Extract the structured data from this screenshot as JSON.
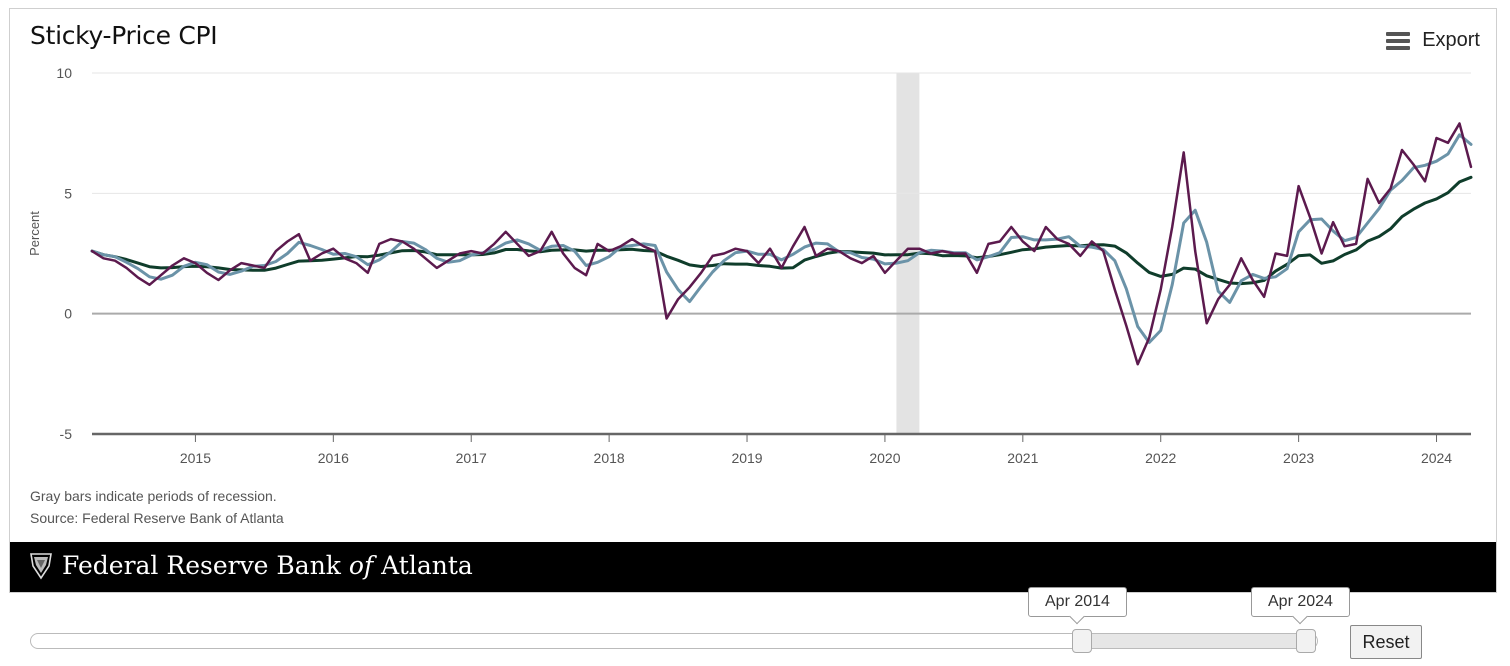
{
  "header": {
    "export_label": "Export",
    "menu_icon": "hamburger-menu-icon"
  },
  "notes": {
    "recession": "Gray bars indicate periods of recession.",
    "source": "Source: Federal Reserve Bank of Atlanta"
  },
  "footer": {
    "name_part1": "Federal Reserve Bank ",
    "name_italic": "of",
    "name_part2": " Atlanta",
    "logo_icon": "eagle-seal-icon"
  },
  "navigator": {
    "start_label": "Apr 2014",
    "end_label": "Apr 2024",
    "reset_label": "Reset"
  },
  "colors": {
    "series1": "#5c1a4e",
    "series2": "#6b93a8",
    "series3": "#0f3d2b",
    "recession": "#e3e3e3",
    "axis": "#666666",
    "zero_line": "#aaaaaa",
    "grid": "#e6e6e6"
  },
  "chart_data": {
    "type": "line",
    "title": "Sticky-Price CPI",
    "ylabel": "Percent",
    "xlabel": "",
    "ylim": [
      -5,
      10
    ],
    "yticks": [
      -5,
      0,
      5,
      10
    ],
    "xlim": [
      "2014-04",
      "2024-04"
    ],
    "xticks": [
      "2015",
      "2016",
      "2017",
      "2018",
      "2019",
      "2020",
      "2021",
      "2022",
      "2023",
      "2024"
    ],
    "recessions": [
      {
        "start": "2020-02",
        "end": "2020-04"
      }
    ],
    "series": [
      {
        "points": [
          [
            "2014-04",
            2.6
          ],
          [
            "2014-05",
            2.3
          ],
          [
            "2014-06",
            2.2
          ],
          [
            "2014-07",
            1.9
          ],
          [
            "2014-08",
            1.5
          ],
          [
            "2014-09",
            1.2
          ],
          [
            "2014-10",
            1.6
          ],
          [
            "2014-11",
            2.0
          ],
          [
            "2014-12",
            2.3
          ],
          [
            "2015-01",
            2.1
          ],
          [
            "2015-02",
            1.7
          ],
          [
            "2015-03",
            1.4
          ],
          [
            "2015-04",
            1.8
          ],
          [
            "2015-05",
            2.1
          ],
          [
            "2015-06",
            2.0
          ],
          [
            "2015-07",
            1.9
          ],
          [
            "2015-08",
            2.6
          ],
          [
            "2015-09",
            3.0
          ],
          [
            "2015-10",
            3.3
          ],
          [
            "2015-11",
            2.2
          ],
          [
            "2015-12",
            2.5
          ],
          [
            "2016-01",
            2.7
          ],
          [
            "2016-02",
            2.3
          ],
          [
            "2016-03",
            2.1
          ],
          [
            "2016-04",
            1.7
          ],
          [
            "2016-05",
            2.9
          ],
          [
            "2016-06",
            3.1
          ],
          [
            "2016-07",
            3.0
          ],
          [
            "2016-08",
            2.7
          ],
          [
            "2016-09",
            2.3
          ],
          [
            "2016-10",
            1.9
          ],
          [
            "2016-11",
            2.2
          ],
          [
            "2016-12",
            2.5
          ],
          [
            "2017-01",
            2.6
          ],
          [
            "2017-02",
            2.5
          ],
          [
            "2017-03",
            2.9
          ],
          [
            "2017-04",
            3.4
          ],
          [
            "2017-05",
            2.9
          ],
          [
            "2017-06",
            2.4
          ],
          [
            "2017-07",
            2.6
          ],
          [
            "2017-08",
            3.4
          ],
          [
            "2017-09",
            2.5
          ],
          [
            "2017-10",
            1.9
          ],
          [
            "2017-11",
            1.6
          ],
          [
            "2017-12",
            2.9
          ],
          [
            "2018-01",
            2.6
          ],
          [
            "2018-02",
            2.8
          ],
          [
            "2018-03",
            3.1
          ],
          [
            "2018-04",
            2.8
          ],
          [
            "2018-05",
            2.6
          ],
          [
            "2018-06",
            -0.2
          ],
          [
            "2018-07",
            0.6
          ],
          [
            "2018-08",
            1.1
          ],
          [
            "2018-09",
            1.7
          ],
          [
            "2018-10",
            2.4
          ],
          [
            "2018-11",
            2.5
          ],
          [
            "2018-12",
            2.7
          ],
          [
            "2019-01",
            2.6
          ],
          [
            "2019-02",
            2.1
          ],
          [
            "2019-03",
            2.7
          ],
          [
            "2019-04",
            1.9
          ],
          [
            "2019-05",
            2.8
          ],
          [
            "2019-06",
            3.6
          ],
          [
            "2019-07",
            2.4
          ],
          [
            "2019-08",
            2.7
          ],
          [
            "2019-09",
            2.6
          ],
          [
            "2019-10",
            2.3
          ],
          [
            "2019-11",
            2.1
          ],
          [
            "2019-12",
            2.4
          ],
          [
            "2020-01",
            1.7
          ],
          [
            "2020-02",
            2.2
          ],
          [
            "2020-03",
            2.7
          ],
          [
            "2020-04",
            2.7
          ],
          [
            "2020-05",
            2.5
          ],
          [
            "2020-06",
            2.6
          ],
          [
            "2020-07",
            2.5
          ],
          [
            "2020-08",
            2.5
          ],
          [
            "2020-09",
            1.7
          ],
          [
            "2020-10",
            2.9
          ],
          [
            "2020-11",
            3.0
          ],
          [
            "2020-12",
            3.6
          ],
          [
            "2021-01",
            3.0
          ],
          [
            "2021-02",
            2.6
          ],
          [
            "2021-03",
            3.6
          ],
          [
            "2021-04",
            3.1
          ],
          [
            "2021-05",
            2.9
          ],
          [
            "2021-06",
            2.4
          ],
          [
            "2021-07",
            3.0
          ],
          [
            "2021-08",
            2.6
          ],
          [
            "2021-09",
            1.0
          ],
          [
            "2021-10",
            -0.5
          ],
          [
            "2021-11",
            -2.1
          ],
          [
            "2021-12",
            -1.0
          ],
          [
            "2022-01",
            1.0
          ],
          [
            "2022-02",
            3.6
          ],
          [
            "2022-03",
            6.7
          ],
          [
            "2022-04",
            2.6
          ],
          [
            "2022-05",
            -0.4
          ],
          [
            "2022-06",
            0.6
          ],
          [
            "2022-07",
            1.2
          ],
          [
            "2022-08",
            2.3
          ],
          [
            "2022-09",
            1.4
          ],
          [
            "2022-10",
            0.7
          ],
          [
            "2022-11",
            2.5
          ],
          [
            "2022-12",
            2.4
          ],
          [
            "2023-01",
            5.3
          ],
          [
            "2023-02",
            4.0
          ],
          [
            "2023-03",
            2.5
          ],
          [
            "2023-04",
            3.8
          ],
          [
            "2023-05",
            2.8
          ],
          [
            "2023-06",
            2.9
          ],
          [
            "2023-07",
            5.6
          ],
          [
            "2023-08",
            4.6
          ],
          [
            "2023-09",
            5.2
          ],
          [
            "2023-10",
            6.8
          ],
          [
            "2023-11",
            6.2
          ],
          [
            "2023-12",
            5.5
          ],
          [
            "2024-01",
            7.3
          ],
          [
            "2024-02",
            7.1
          ],
          [
            "2024-03",
            7.9
          ],
          [
            "2024-04",
            6.1
          ]
        ]
      }
    ]
  }
}
